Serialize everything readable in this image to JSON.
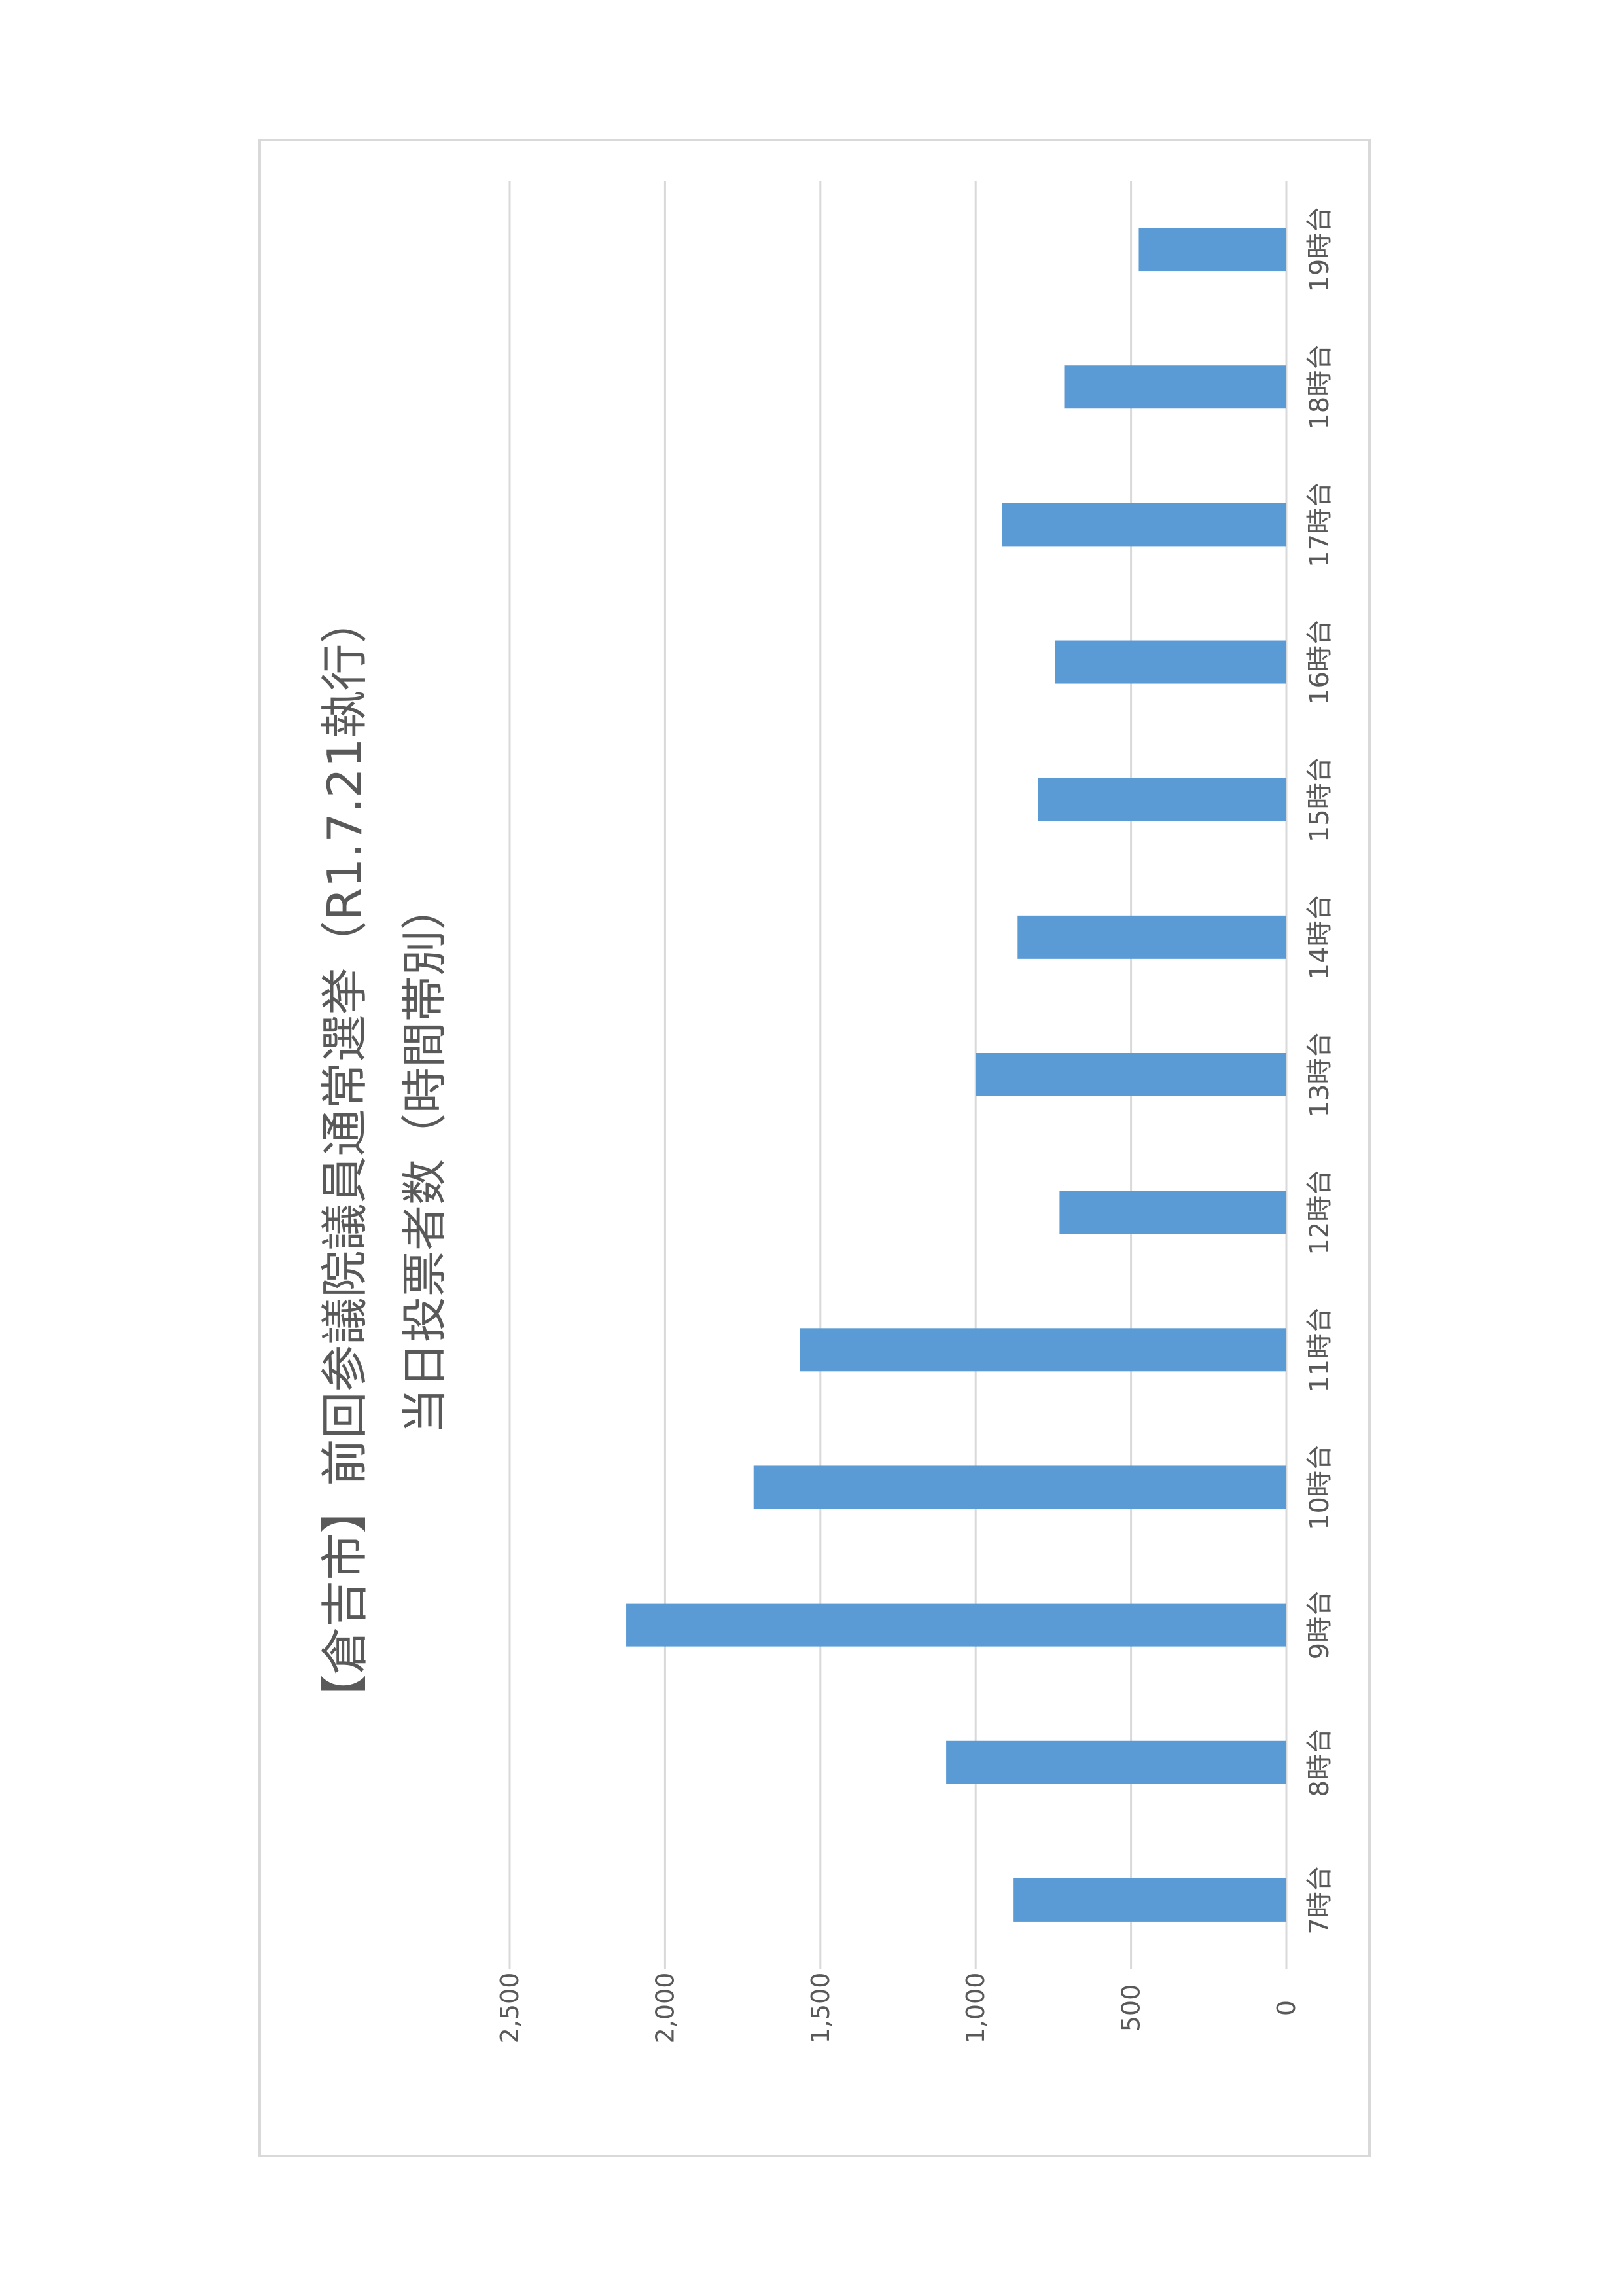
{
  "chart_data": {
    "type": "bar",
    "orientation": "rotated-90-ccw",
    "title_lines": [
      "【倉吉市】前回参議院議員通常選挙（R1.7.21執行）",
      "当日投票者数（時間帯別）"
    ],
    "categories": [
      "7時台",
      "8時台",
      "9時台",
      "10時台",
      "11時台",
      "12時台",
      "13時台",
      "14時台",
      "15時台",
      "16時台",
      "17時台",
      "18時台",
      "19時台"
    ],
    "values": [
      880,
      1095,
      2125,
      1715,
      1565,
      730,
      1000,
      865,
      800,
      745,
      915,
      715,
      475
    ],
    "ylim": [
      0,
      2500
    ],
    "yticks": [
      0,
      500,
      1000,
      1500,
      2000,
      2500
    ],
    "ytick_labels": [
      "0",
      "500",
      "1,000",
      "1,500",
      "2,000",
      "2,500"
    ],
    "grid": true,
    "bar_color": "#5b9bd5",
    "grid_color": "#d9d9d9",
    "text_color": "#595959"
  }
}
